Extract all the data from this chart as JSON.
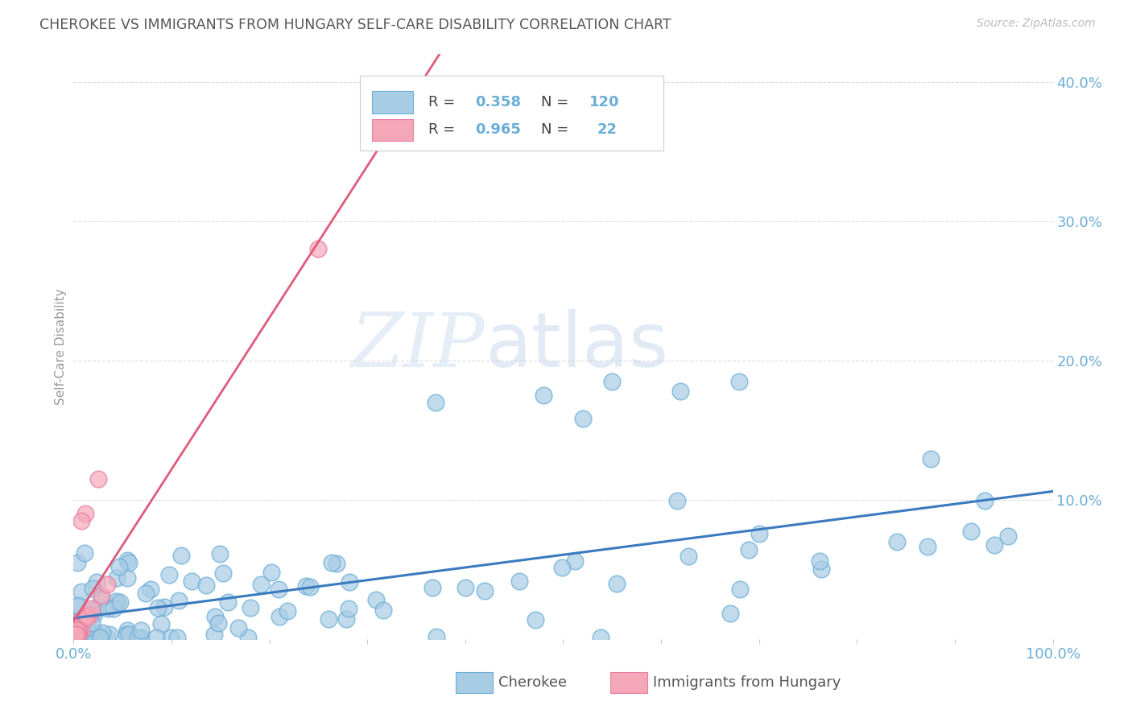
{
  "title": "CHEROKEE VS IMMIGRANTS FROM HUNGARY SELF-CARE DISABILITY CORRELATION CHART",
  "source": "Source: ZipAtlas.com",
  "ylabel": "Self-Care Disability",
  "xlim": [
    0,
    1.0
  ],
  "ylim": [
    0,
    0.42
  ],
  "blue_R": 0.358,
  "blue_N": 120,
  "pink_R": 0.965,
  "pink_N": 22,
  "blue_color": "#a8cce4",
  "pink_color": "#f4a7b9",
  "blue_edge_color": "#6baed6",
  "pink_edge_color": "#e87da0",
  "blue_line_color": "#3a7abf",
  "pink_line_color": "#e05a7a",
  "legend_label1": "Cherokee",
  "legend_label2": "Immigrants from Hungary",
  "watermark_zip": "ZIP",
  "watermark_atlas": "atlas",
  "background_color": "#ffffff",
  "title_color": "#555555",
  "axis_tick_color": "#6baed6",
  "grid_color": "#dddddd"
}
